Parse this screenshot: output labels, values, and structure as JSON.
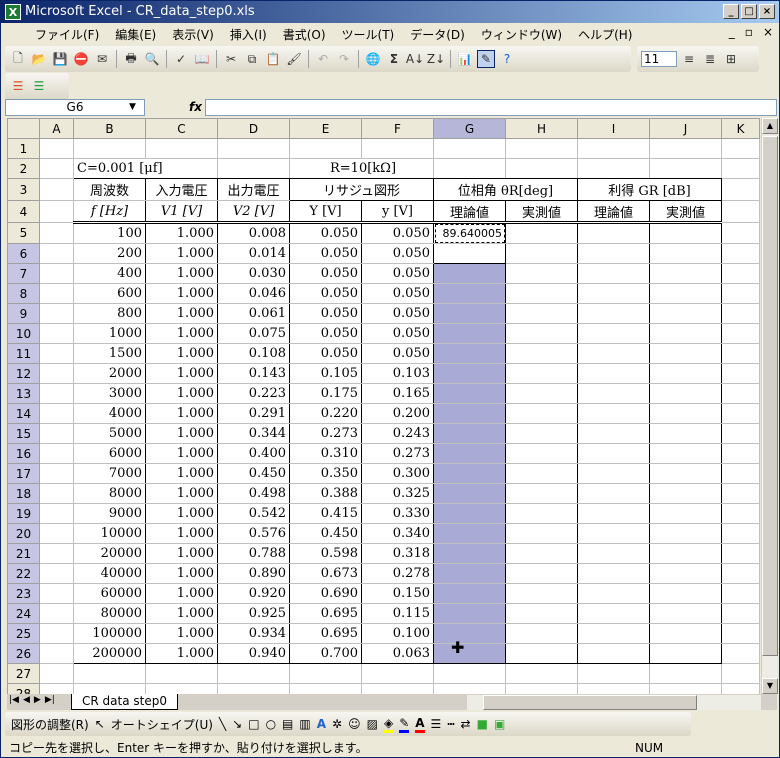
{
  "window": {
    "title": "Microsoft Excel - CR_data_step0.xls",
    "app_icon": "excel-icon"
  },
  "menu": [
    "ファイル(F)",
    "編集(E)",
    "表示(V)",
    "挿入(I)",
    "書式(O)",
    "ツール(T)",
    "データ(D)",
    "ウィンドウ(W)",
    "ヘルプ(H)"
  ],
  "toolbar": {
    "font_size": "11",
    "sigma": "Σ"
  },
  "formula_bar": {
    "name_box": "G6",
    "fx": "fx",
    "value": ""
  },
  "columns": [
    "A",
    "B",
    "C",
    "D",
    "E",
    "F",
    "G",
    "H",
    "I",
    "J",
    "K"
  ],
  "row2": {
    "c": "C=0.001 [μf]",
    "r": "R=10[kΩ]"
  },
  "row3": {
    "b": "周波数",
    "c": "入力電圧",
    "d": "出力電圧",
    "ef": "リサジュ図形",
    "gh": "位相角 θR[deg]",
    "ij": "利得 GR [dB]"
  },
  "row4": {
    "b": "f [Hz]",
    "c": "V1 [V]",
    "d": "V2 [V]",
    "e": "Y [V]",
    "f": "y [V]",
    "g": "理論値",
    "h": "実測値",
    "i": "理論値",
    "j": "実測値"
  },
  "g5": "89.640005",
  "rows": [
    [
      "100",
      "1.000",
      "0.008",
      "0.050",
      "0.050"
    ],
    [
      "200",
      "1.000",
      "0.014",
      "0.050",
      "0.050"
    ],
    [
      "400",
      "1.000",
      "0.030",
      "0.050",
      "0.050"
    ],
    [
      "600",
      "1.000",
      "0.046",
      "0.050",
      "0.050"
    ],
    [
      "800",
      "1.000",
      "0.061",
      "0.050",
      "0.050"
    ],
    [
      "1000",
      "1.000",
      "0.075",
      "0.050",
      "0.050"
    ],
    [
      "1500",
      "1.000",
      "0.108",
      "0.050",
      "0.050"
    ],
    [
      "2000",
      "1.000",
      "0.143",
      "0.105",
      "0.103"
    ],
    [
      "3000",
      "1.000",
      "0.223",
      "0.175",
      "0.165"
    ],
    [
      "4000",
      "1.000",
      "0.291",
      "0.220",
      "0.200"
    ],
    [
      "5000",
      "1.000",
      "0.344",
      "0.273",
      "0.243"
    ],
    [
      "6000",
      "1.000",
      "0.400",
      "0.310",
      "0.273"
    ],
    [
      "7000",
      "1.000",
      "0.450",
      "0.350",
      "0.300"
    ],
    [
      "8000",
      "1.000",
      "0.498",
      "0.388",
      "0.325"
    ],
    [
      "9000",
      "1.000",
      "0.542",
      "0.415",
      "0.330"
    ],
    [
      "10000",
      "1.000",
      "0.576",
      "0.450",
      "0.340"
    ],
    [
      "20000",
      "1.000",
      "0.788",
      "0.598",
      "0.318"
    ],
    [
      "40000",
      "1.000",
      "0.890",
      "0.673",
      "0.278"
    ],
    [
      "60000",
      "1.000",
      "0.920",
      "0.690",
      "0.150"
    ],
    [
      "80000",
      "1.000",
      "0.925",
      "0.695",
      "0.115"
    ],
    [
      "100000",
      "1.000",
      "0.934",
      "0.695",
      "0.100"
    ],
    [
      "200000",
      "1.000",
      "0.940",
      "0.700",
      "0.063"
    ]
  ],
  "sheet_tab": "CR data step0",
  "drawing": {
    "draw": "図形の調整(R)",
    "autoshape": "オートシェイプ(U)"
  },
  "status": {
    "message": "コピー先を選択し、Enter キーを押すか、貼り付けを選択します。",
    "num": "NUM"
  },
  "colors": {
    "selection": "#aaaad6",
    "title_bar": "#0a246a"
  }
}
